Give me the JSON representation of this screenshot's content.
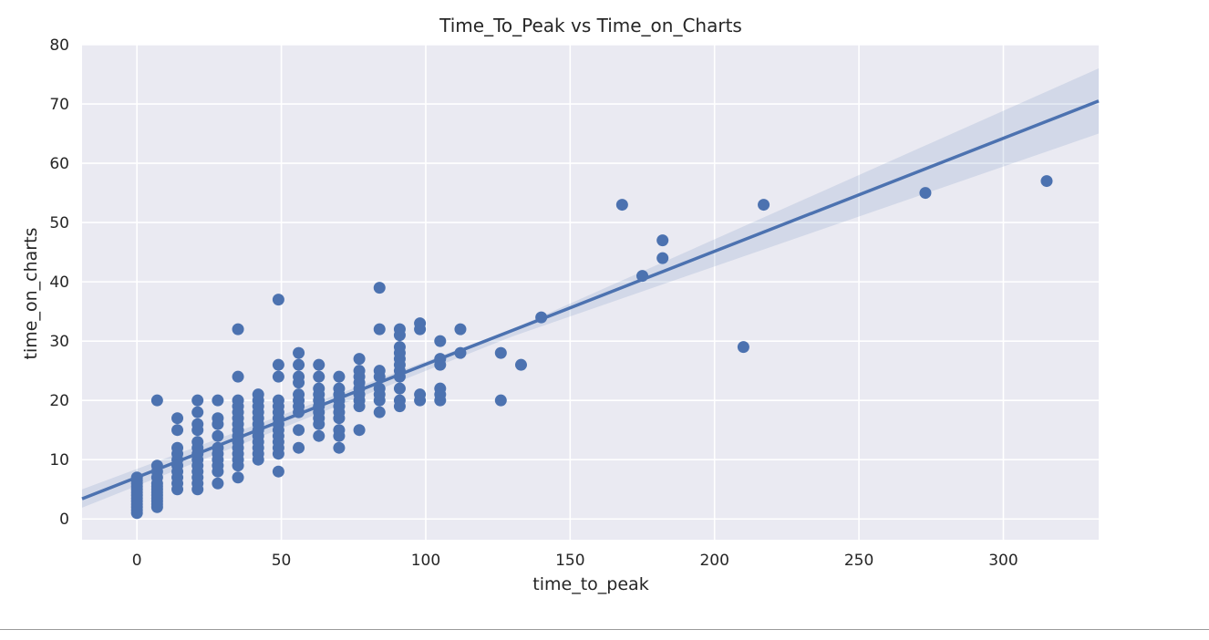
{
  "chart_data": {
    "type": "scatter",
    "title": "Time_To_Peak vs Time_on_Charts",
    "xlabel": "time_to_peak",
    "ylabel": "time_on_charts",
    "xlim": [
      -19,
      333
    ],
    "ylim": [
      -3.5,
      80
    ],
    "xticks": [
      0,
      50,
      100,
      150,
      200,
      250,
      300
    ],
    "yticks": [
      0,
      10,
      20,
      30,
      40,
      50,
      60,
      70,
      80
    ],
    "grid": true,
    "background": "#eaeaf2",
    "color": "#4c72b0",
    "regression": {
      "x": [
        -19,
        333
      ],
      "y": [
        3.4,
        70.5
      ],
      "ci_lower": [
        1.9,
        65.0
      ],
      "ci_upper": [
        5.0,
        76.0
      ],
      "ci_mid_x": 130,
      "ci_mid_lower": 30.8,
      "ci_mid_upper": 32.0
    },
    "points": [
      [
        0,
        1
      ],
      [
        0,
        1.5
      ],
      [
        0,
        2
      ],
      [
        0,
        2.5
      ],
      [
        0,
        3
      ],
      [
        0,
        3.5
      ],
      [
        0,
        4
      ],
      [
        0,
        4.5
      ],
      [
        0,
        5
      ],
      [
        0,
        5.5
      ],
      [
        0,
        6
      ],
      [
        0,
        6.5
      ],
      [
        0,
        7
      ],
      [
        7,
        2
      ],
      [
        7,
        2.5
      ],
      [
        7,
        3
      ],
      [
        7,
        3.5
      ],
      [
        7,
        4
      ],
      [
        7,
        4.5
      ],
      [
        7,
        5
      ],
      [
        7,
        5.5
      ],
      [
        7,
        6
      ],
      [
        7,
        7
      ],
      [
        7,
        8
      ],
      [
        7,
        9
      ],
      [
        7,
        20
      ],
      [
        14,
        5
      ],
      [
        14,
        6
      ],
      [
        14,
        7
      ],
      [
        14,
        8
      ],
      [
        14,
        9
      ],
      [
        14,
        10
      ],
      [
        14,
        11
      ],
      [
        14,
        12
      ],
      [
        14,
        15
      ],
      [
        14,
        17
      ],
      [
        21,
        5
      ],
      [
        21,
        6
      ],
      [
        21,
        7
      ],
      [
        21,
        8
      ],
      [
        21,
        9
      ],
      [
        21,
        10
      ],
      [
        21,
        11
      ],
      [
        21,
        12
      ],
      [
        21,
        13
      ],
      [
        21,
        15
      ],
      [
        21,
        16
      ],
      [
        21,
        18
      ],
      [
        21,
        20
      ],
      [
        28,
        6
      ],
      [
        28,
        8
      ],
      [
        28,
        9
      ],
      [
        28,
        10
      ],
      [
        28,
        11
      ],
      [
        28,
        12
      ],
      [
        28,
        14
      ],
      [
        28,
        16
      ],
      [
        28,
        17
      ],
      [
        28,
        20
      ],
      [
        35,
        7
      ],
      [
        35,
        9
      ],
      [
        35,
        10
      ],
      [
        35,
        11
      ],
      [
        35,
        12
      ],
      [
        35,
        13
      ],
      [
        35,
        14
      ],
      [
        35,
        15
      ],
      [
        35,
        16
      ],
      [
        35,
        17
      ],
      [
        35,
        18
      ],
      [
        35,
        19
      ],
      [
        35,
        20
      ],
      [
        35,
        24
      ],
      [
        35,
        32
      ],
      [
        42,
        10
      ],
      [
        42,
        11
      ],
      [
        42,
        12
      ],
      [
        42,
        13
      ],
      [
        42,
        14
      ],
      [
        42,
        15
      ],
      [
        42,
        16
      ],
      [
        42,
        17
      ],
      [
        42,
        18
      ],
      [
        42,
        19
      ],
      [
        42,
        20
      ],
      [
        42,
        21
      ],
      [
        49,
        8
      ],
      [
        49,
        11
      ],
      [
        49,
        12
      ],
      [
        49,
        13
      ],
      [
        49,
        14
      ],
      [
        49,
        15
      ],
      [
        49,
        16
      ],
      [
        49,
        17
      ],
      [
        49,
        18
      ],
      [
        49,
        19
      ],
      [
        49,
        20
      ],
      [
        49,
        24
      ],
      [
        49,
        26
      ],
      [
        49,
        37
      ],
      [
        56,
        12
      ],
      [
        56,
        15
      ],
      [
        56,
        18
      ],
      [
        56,
        19
      ],
      [
        56,
        20
      ],
      [
        56,
        21
      ],
      [
        56,
        23
      ],
      [
        56,
        24
      ],
      [
        56,
        26
      ],
      [
        56,
        28
      ],
      [
        63,
        14
      ],
      [
        63,
        16
      ],
      [
        63,
        17
      ],
      [
        63,
        18
      ],
      [
        63,
        19
      ],
      [
        63,
        20
      ],
      [
        63,
        21
      ],
      [
        63,
        22
      ],
      [
        63,
        24
      ],
      [
        63,
        26
      ],
      [
        70,
        12
      ],
      [
        70,
        14
      ],
      [
        70,
        15
      ],
      [
        70,
        17
      ],
      [
        70,
        18
      ],
      [
        70,
        19
      ],
      [
        70,
        20
      ],
      [
        70,
        21
      ],
      [
        70,
        22
      ],
      [
        70,
        24
      ],
      [
        77,
        15
      ],
      [
        77,
        19
      ],
      [
        77,
        20
      ],
      [
        77,
        21
      ],
      [
        77,
        22
      ],
      [
        77,
        23
      ],
      [
        77,
        24
      ],
      [
        77,
        25
      ],
      [
        77,
        27
      ],
      [
        84,
        18
      ],
      [
        84,
        20
      ],
      [
        84,
        21
      ],
      [
        84,
        22
      ],
      [
        84,
        24
      ],
      [
        84,
        25
      ],
      [
        84,
        32
      ],
      [
        84,
        39
      ],
      [
        91,
        19
      ],
      [
        91,
        20
      ],
      [
        91,
        22
      ],
      [
        91,
        24
      ],
      [
        91,
        25
      ],
      [
        91,
        26
      ],
      [
        91,
        27
      ],
      [
        91,
        28
      ],
      [
        91,
        29
      ],
      [
        91,
        31
      ],
      [
        91,
        32
      ],
      [
        98,
        20
      ],
      [
        98,
        21
      ],
      [
        98,
        32
      ],
      [
        98,
        33
      ],
      [
        105,
        20
      ],
      [
        105,
        21
      ],
      [
        105,
        22
      ],
      [
        105,
        26
      ],
      [
        105,
        27
      ],
      [
        105,
        30
      ],
      [
        112,
        28
      ],
      [
        112,
        32
      ],
      [
        126,
        20
      ],
      [
        126,
        28
      ],
      [
        133,
        26
      ],
      [
        140,
        34
      ],
      [
        168,
        53
      ],
      [
        175,
        41
      ],
      [
        182,
        44
      ],
      [
        182,
        47
      ],
      [
        210,
        29
      ],
      [
        217,
        53
      ],
      [
        273,
        55
      ],
      [
        315,
        57
      ]
    ]
  }
}
